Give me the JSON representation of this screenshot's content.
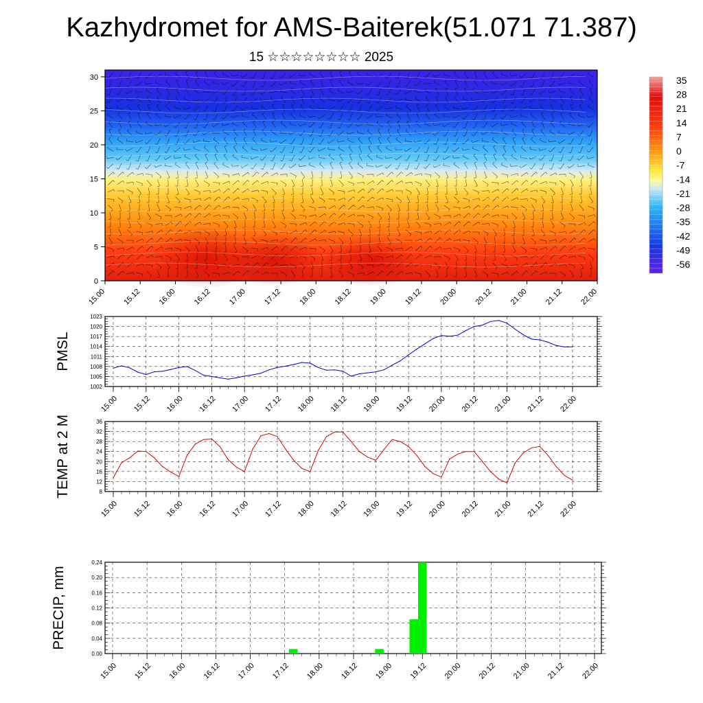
{
  "title": "Kazhydromet for AMS-Baiterek(51.071 71.387)",
  "subtitle": "15 ☆☆☆☆☆☆☆☆ 2025",
  "colorbar": {
    "labels": [
      "35",
      "28",
      "21",
      "14",
      "7",
      "0",
      "-7",
      "-14",
      "-21",
      "-28",
      "-35",
      "-42",
      "-49",
      "-56"
    ]
  },
  "chart_data": [
    {
      "type": "heatmap",
      "name": "temperature-wind-cross-section",
      "ylim": [
        0,
        31
      ],
      "yticks": [
        "0",
        "5",
        "10",
        "15",
        "20",
        "25",
        "30"
      ],
      "xticks": [
        "15.00",
        "15.12",
        "16.00",
        "16.12",
        "17.00",
        "17.12",
        "18.00",
        "18.12",
        "19.00",
        "19.12",
        "20.00",
        "20.12",
        "21.00",
        "21.12",
        "22.00"
      ],
      "color_range": [
        -60,
        38
      ]
    },
    {
      "type": "line",
      "name": "pmsl",
      "ylabel": "PMSL",
      "ylim": [
        1002,
        1023
      ],
      "yticks": [
        "1002",
        "1005",
        "1008",
        "1011",
        "1014",
        "1017",
        "1020",
        "1023"
      ],
      "xticks": [
        "15.00",
        "15.12",
        "16.00",
        "16.12",
        "17.00",
        "17.12",
        "18.00",
        "18.12",
        "19.00",
        "19.12",
        "20.00",
        "20.12",
        "21.00",
        "21.12",
        "22.00"
      ],
      "series": [
        {
          "color": "#0000cc",
          "x": [
            0,
            3,
            6,
            9,
            12,
            15,
            18,
            21,
            24,
            27,
            30,
            33,
            36,
            39,
            42,
            45,
            48,
            51,
            54,
            57,
            60,
            63,
            66,
            69,
            72,
            75,
            78,
            81,
            84,
            87,
            90,
            93,
            96,
            99,
            102,
            105,
            108,
            111,
            114,
            117,
            120,
            123,
            126,
            129,
            132,
            135,
            138,
            141,
            144,
            147,
            150,
            153,
            156,
            159,
            162,
            165,
            168
          ],
          "y": [
            1007.5,
            1008.2,
            1007.6,
            1006.3,
            1005.6,
            1006.4,
            1006.6,
            1007.1,
            1007.7,
            1008.0,
            1006.8,
            1005.4,
            1005.0,
            1004.6,
            1004.2,
            1004.6,
            1005.1,
            1005.5,
            1006.0,
            1007.0,
            1007.7,
            1008.1,
            1008.6,
            1009.2,
            1009.0,
            1007.7,
            1006.9,
            1007.0,
            1006.6,
            1005.1,
            1005.8,
            1006.1,
            1006.4,
            1007.0,
            1008.4,
            1009.7,
            1011.5,
            1013.2,
            1014.8,
            1016.4,
            1017.3,
            1017.1,
            1017.4,
            1018.8,
            1020.0,
            1020.4,
            1021.5,
            1021.8,
            1021.0,
            1019.2,
            1017.5,
            1016.2,
            1016.0,
            1015.3,
            1014.3,
            1013.9,
            1013.9
          ]
        }
      ]
    },
    {
      "type": "line",
      "name": "temp-2m",
      "ylabel": "TEMP at 2 M",
      "ylim": [
        8,
        36
      ],
      "yticks": [
        "8",
        "12",
        "16",
        "20",
        "24",
        "28",
        "32",
        "36"
      ],
      "xticks": [
        "15.00",
        "15.12",
        "16.00",
        "16.12",
        "17.00",
        "17.12",
        "18.00",
        "18.12",
        "19.00",
        "19.12",
        "20.00",
        "20.12",
        "21.00",
        "21.12",
        "22.00"
      ],
      "series": [
        {
          "color": "#dd0000",
          "x": [
            0,
            3,
            6,
            9,
            12,
            15,
            18,
            21,
            24,
            27,
            30,
            33,
            36,
            39,
            42,
            45,
            48,
            51,
            54,
            57,
            60,
            63,
            66,
            69,
            72,
            75,
            78,
            81,
            84,
            87,
            90,
            93,
            96,
            99,
            102,
            105,
            108,
            111,
            114,
            117,
            120,
            123,
            126,
            129,
            132,
            135,
            138,
            141,
            144,
            147,
            150,
            153,
            156,
            159,
            162,
            165,
            168
          ],
          "y": [
            13.5,
            19.5,
            21.5,
            24.2,
            24.0,
            21.5,
            18.0,
            15.8,
            14.0,
            22.5,
            27.0,
            28.8,
            29.0,
            26.0,
            20.8,
            17.8,
            16.0,
            25.0,
            30.3,
            31.2,
            30.0,
            25.0,
            20.5,
            17.2,
            16.0,
            24.5,
            30.0,
            31.8,
            31.8,
            28.0,
            24.0,
            21.8,
            20.5,
            24.8,
            28.8,
            28.0,
            26.0,
            22.5,
            18.0,
            15.2,
            13.8,
            21.0,
            23.0,
            24.0,
            24.0,
            20.0,
            16.0,
            13.0,
            11.5,
            19.5,
            23.5,
            25.5,
            26.0,
            22.5,
            18.0,
            14.5,
            12.5
          ]
        }
      ]
    },
    {
      "type": "bar",
      "name": "precip",
      "ylabel": "PRECIP, mm",
      "ylim": [
        0,
        0.24
      ],
      "yticks": [
        "0.00",
        "0.04",
        "0.08",
        "0.12",
        "0.16",
        "0.20",
        "0.24"
      ],
      "xticks": [
        "15.00",
        "15.12",
        "16.00",
        "16.12",
        "17.00",
        "17.12",
        "18.00",
        "18.12",
        "19.00",
        "19.12",
        "20.00",
        "20.12",
        "21.00",
        "21.12",
        "22.00"
      ],
      "color": "#00ee00",
      "x": [
        63,
        93,
        105,
        108
      ],
      "values": [
        0.012,
        0.012,
        0.09,
        0.24
      ]
    }
  ]
}
